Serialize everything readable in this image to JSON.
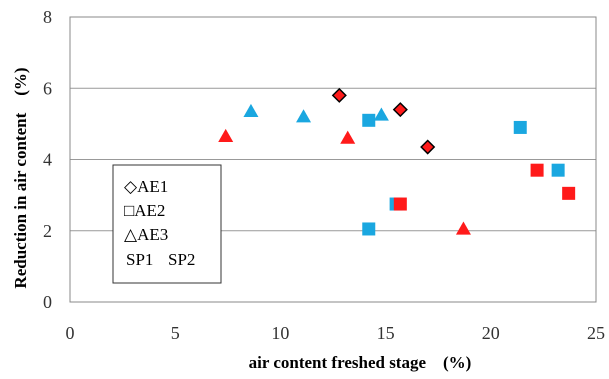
{
  "chart_data": {
    "type": "scatter",
    "xlabel": "air content freshed stage　(%)",
    "ylabel": "Reduction in air content　(%)",
    "xlim": [
      0,
      25
    ],
    "ylim": [
      0,
      8
    ],
    "x_ticks": [
      "0",
      "5",
      "10",
      "15",
      "20",
      "25"
    ],
    "y_ticks": [
      "0",
      "2",
      "4",
      "6",
      "8"
    ],
    "grid": "horizontal",
    "legend_position": "middle-left",
    "legend": {
      "marker_entries": [
        {
          "symbol": "diamond",
          "label": "◇AE1"
        },
        {
          "symbol": "square",
          "label": "□AE2"
        },
        {
          "symbol": "triangle",
          "label": "△AE3"
        }
      ],
      "color_entries": [
        {
          "label": "SP1",
          "color": "#1aa7e0"
        },
        {
          "label": "SP2",
          "color": "#ff1a1a"
        }
      ]
    },
    "series": [
      {
        "name": "AE1 SP2",
        "marker": "diamond",
        "color": "#ff1a1a",
        "outline": "#000000",
        "x": [
          12.8,
          15.7,
          17.0
        ],
        "y": [
          5.8,
          5.4,
          4.35
        ]
      },
      {
        "name": "AE2 SP1",
        "marker": "square",
        "color": "#1aa7e0",
        "x": [
          14.2,
          21.4,
          23.2,
          15.5,
          14.2
        ],
        "y": [
          5.1,
          4.9,
          3.7,
          2.75,
          2.05
        ]
      },
      {
        "name": "AE2 SP2",
        "marker": "square",
        "color": "#ff1a1a",
        "x": [
          22.2,
          23.7,
          15.7
        ],
        "y": [
          3.7,
          3.05,
          2.75
        ]
      },
      {
        "name": "AE3 SP1",
        "marker": "triangle",
        "color": "#1aa7e0",
        "x": [
          8.6,
          11.1,
          14.8
        ],
        "y": [
          5.35,
          5.2,
          5.25
        ]
      },
      {
        "name": "AE3 SP2",
        "marker": "triangle",
        "color": "#ff1a1a",
        "x": [
          7.4,
          13.2,
          18.7
        ],
        "y": [
          4.65,
          4.6,
          2.05
        ]
      }
    ]
  }
}
